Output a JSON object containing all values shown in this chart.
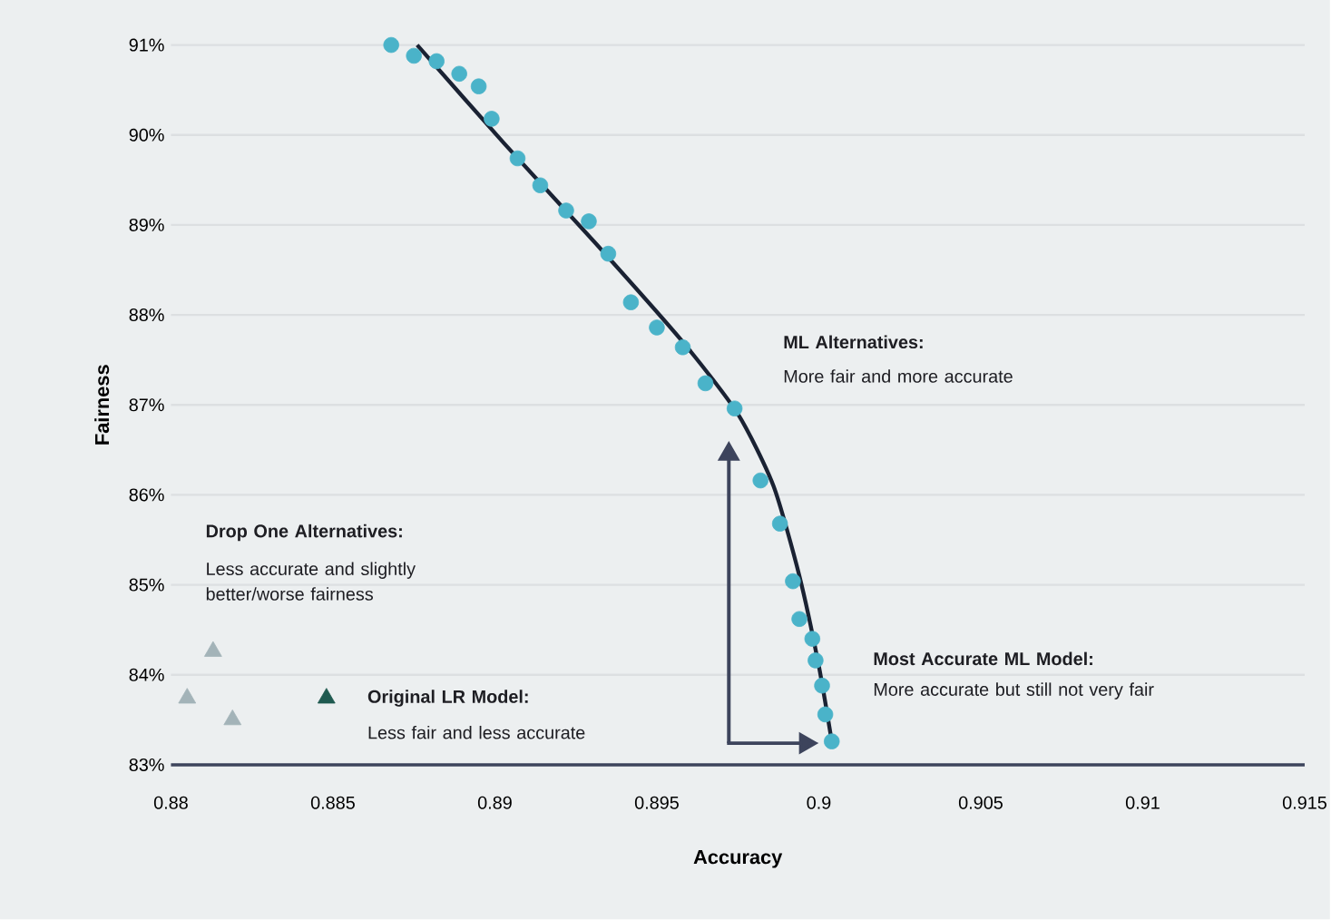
{
  "chart_data": {
    "type": "scatter",
    "xlabel": "Accuracy",
    "ylabel": "Fairness",
    "xlim": [
      0.88,
      0.915
    ],
    "ylim": [
      83,
      91
    ],
    "xticks": [
      0.88,
      0.885,
      0.89,
      0.895,
      0.9,
      0.905,
      0.91,
      0.915
    ],
    "yticks": [
      {
        "value": 83,
        "label": "83%"
      },
      {
        "value": 84,
        "label": "84%"
      },
      {
        "value": 85,
        "label": "85%"
      },
      {
        "value": 86,
        "label": "86%"
      },
      {
        "value": 87,
        "label": "87%"
      },
      {
        "value": 88,
        "label": "88%"
      },
      {
        "value": 89,
        "label": "89%"
      },
      {
        "value": 90,
        "label": "90%"
      },
      {
        "value": 91,
        "label": "91%"
      }
    ],
    "grid": "y",
    "series": [
      {
        "marker": "circle",
        "color": "#4ab3c9",
        "x": [
          0.8868,
          0.8875,
          0.8882,
          0.8889,
          0.8895,
          0.8899,
          0.8907,
          0.8914,
          0.8922,
          0.8929,
          0.8935,
          0.8942,
          0.895,
          0.8958,
          0.8965,
          0.8974,
          0.8982,
          0.8988,
          0.8992,
          0.8994,
          0.8998,
          0.8999,
          0.9001,
          0.9002,
          0.9004
        ],
        "values": [
          91.0,
          90.88,
          90.82,
          90.68,
          90.54,
          90.18,
          89.74,
          89.44,
          89.16,
          89.04,
          88.68,
          88.14,
          87.86,
          87.64,
          87.24,
          86.96,
          86.16,
          85.68,
          85.04,
          84.62,
          84.4,
          84.16,
          83.88,
          83.56,
          83.26
        ]
      },
      {
        "type": "line",
        "marker": "none",
        "line_style": "solid",
        "color": "#1a2233",
        "x": [
          0.8876,
          0.8903,
          0.8931,
          0.8958,
          0.8975,
          0.8986,
          0.8994,
          0.9,
          0.9004
        ],
        "values": [
          91.0,
          89.9,
          88.8,
          87.7,
          86.9,
          86.1,
          85.1,
          84.1,
          83.26
        ]
      },
      {
        "marker": "triangle",
        "color": "#a3b3b8",
        "x": [
          0.8813,
          0.8805,
          0.8819
        ],
        "values": [
          84.26,
          83.74,
          83.5
        ]
      },
      {
        "marker": "triangle",
        "color": "#1f5a50",
        "x": [
          0.8848
        ],
        "values": [
          83.74
        ]
      }
    ],
    "annotations": [
      "ML Alternatives:",
      "More fair and more accurate",
      "Drop One Alternatives:",
      "Less accurate and slightly better/worse fairness",
      "Original LR Model:",
      "Less fair and less accurate",
      "Most Accurate ML Model:",
      "More accurate but still not very fair"
    ]
  }
}
